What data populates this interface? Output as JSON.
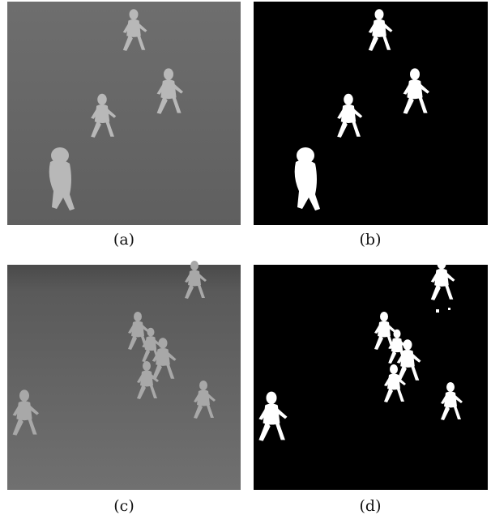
{
  "figure": {
    "panels": [
      {
        "caption": "(a)"
      },
      {
        "caption": "(b)"
      },
      {
        "caption": "(c)"
      },
      {
        "caption": "(d)"
      }
    ]
  }
}
